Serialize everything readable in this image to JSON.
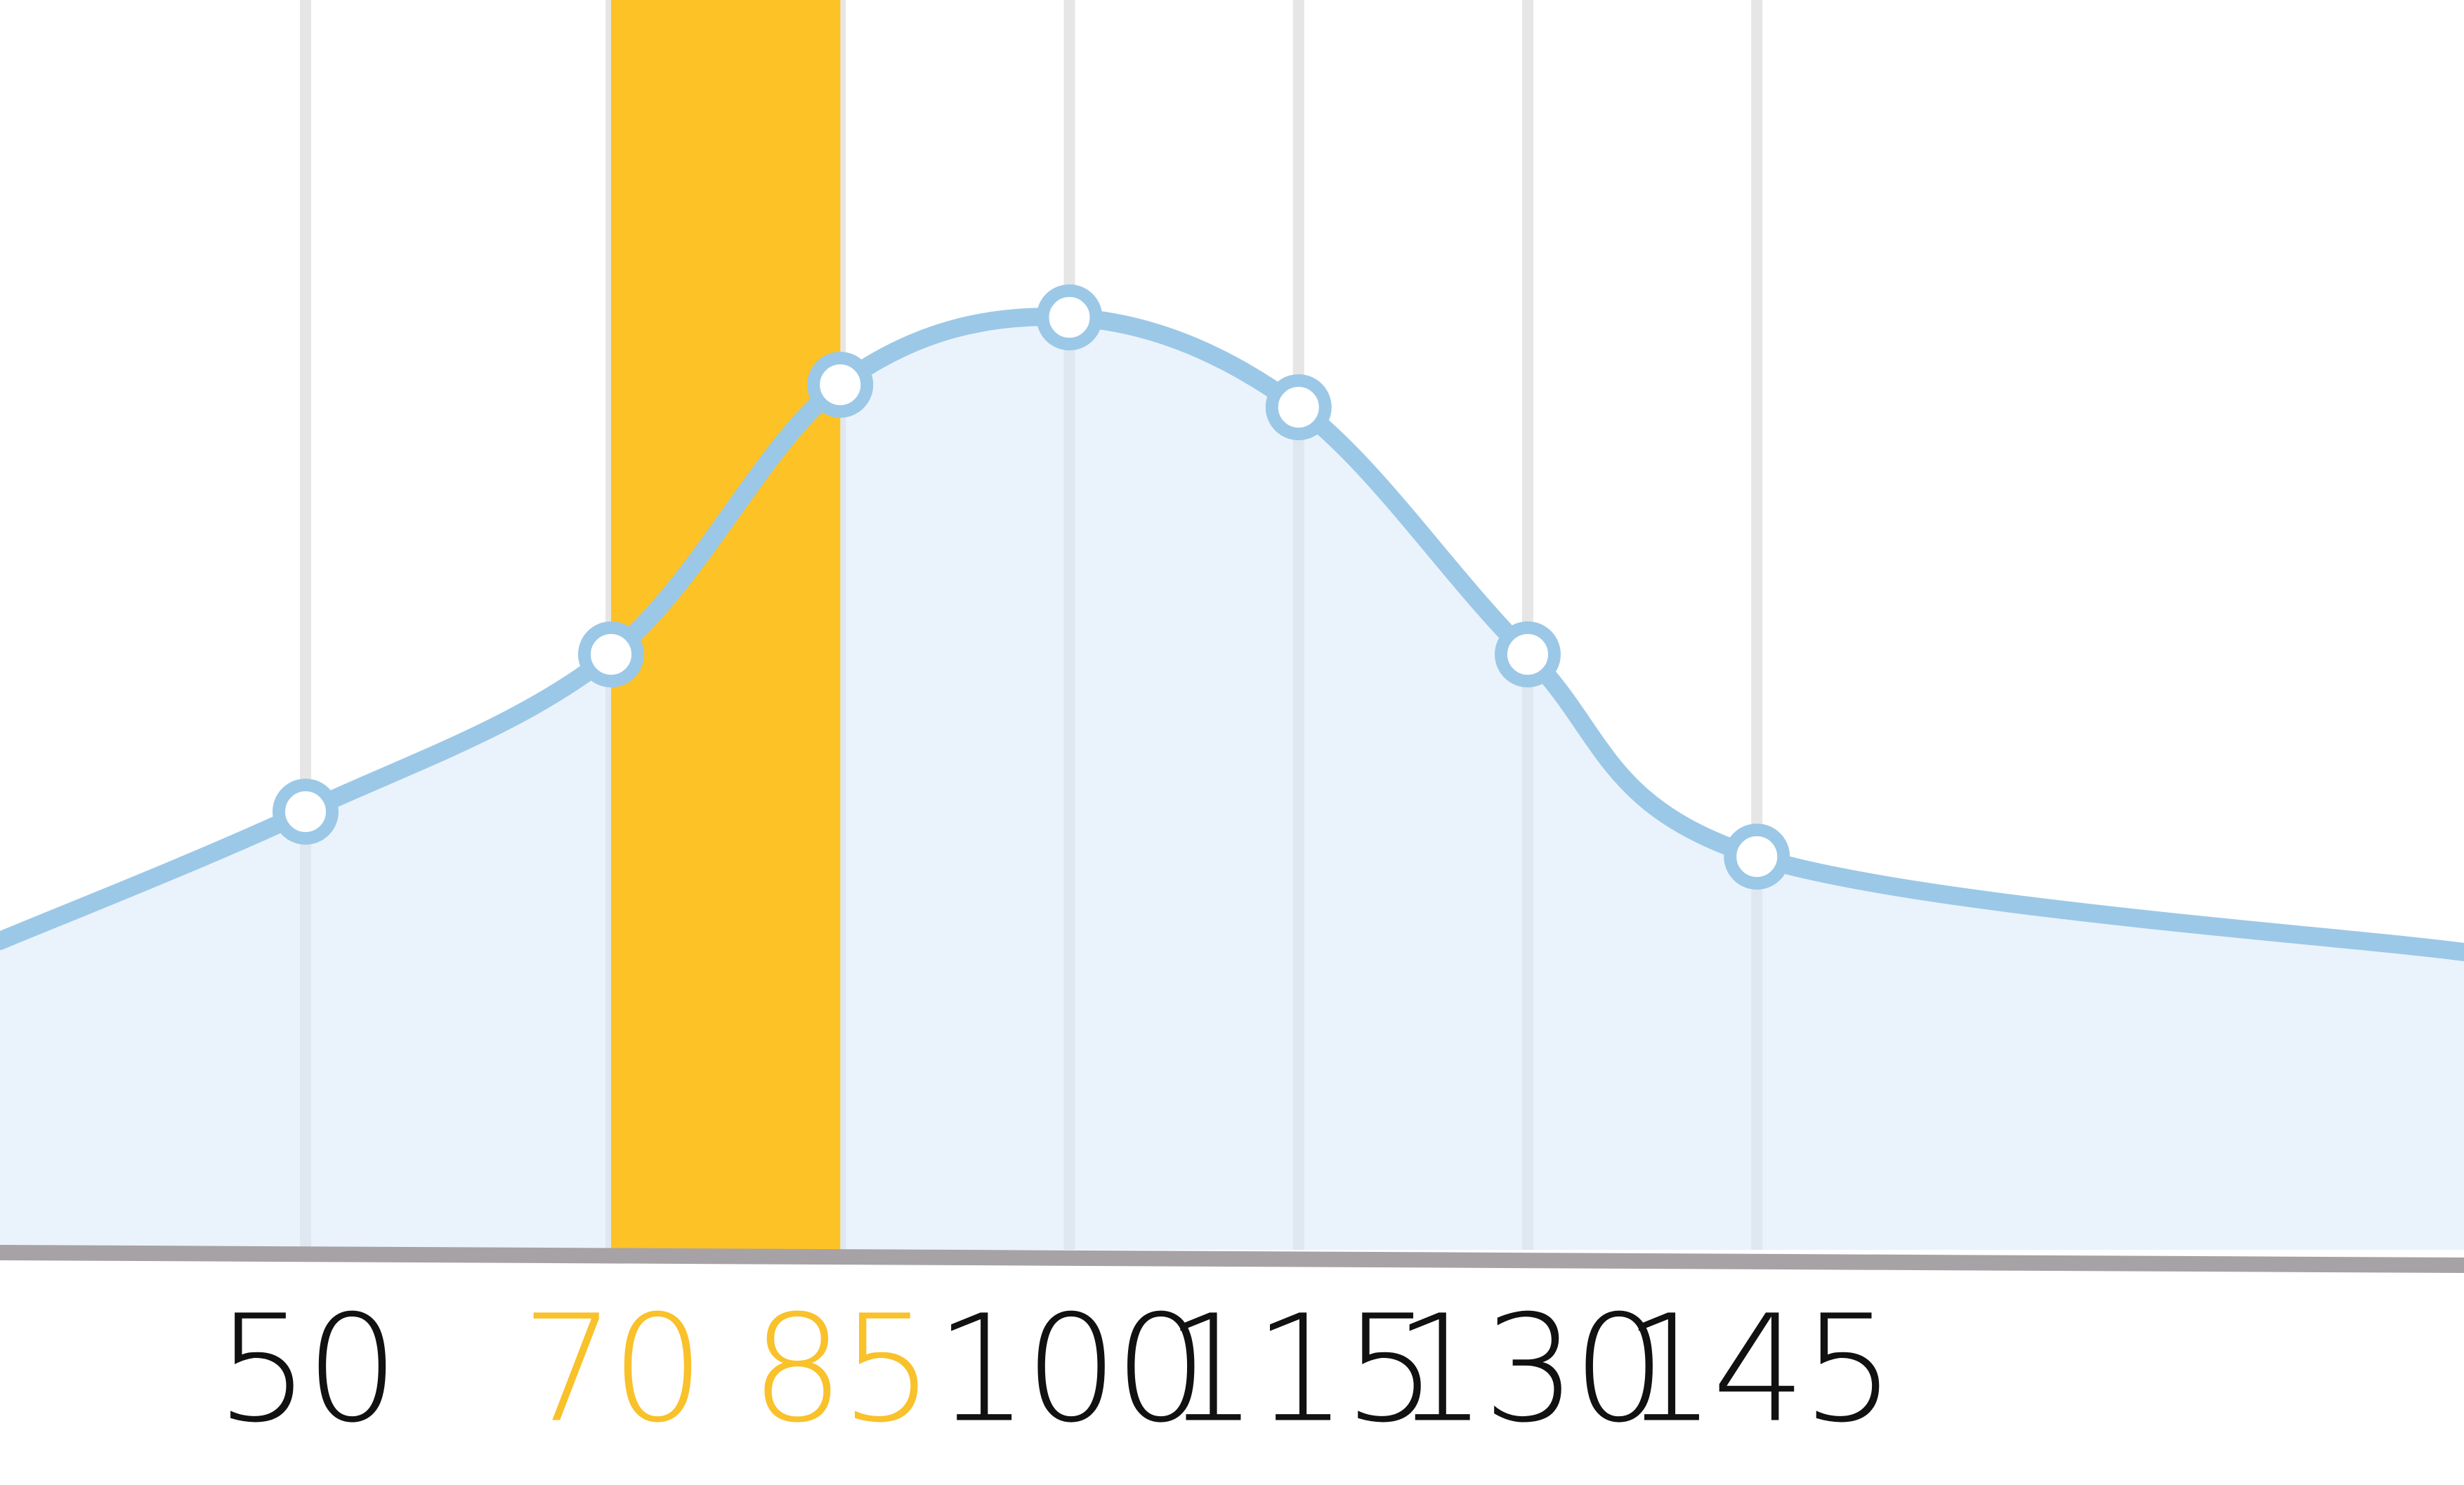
{
  "chart_data": {
    "type": "area",
    "x": [
      50,
      70,
      85,
      100,
      115,
      130,
      145
    ],
    "tick_labels": [
      "50",
      "70",
      "85",
      "100",
      "115",
      "130",
      "145"
    ],
    "values": [
      0.39,
      0.53,
      0.77,
      0.83,
      0.75,
      0.53,
      0.35
    ],
    "line_start_value": 0.275,
    "line_end_value": 0.265,
    "highlight_range": [
      70,
      85
    ],
    "highlighted_tick_labels": [
      "70",
      "85"
    ],
    "colors": {
      "highlight": "#FCC226",
      "area_fill": "#D8E9F9",
      "line": "#9CC8E7",
      "grid": "#E6E6E6",
      "baseline": "#A7A2A6",
      "tick_text": "#111111",
      "tick_text_highlight": "#F9C12A"
    },
    "grid": true,
    "title": "",
    "xlabel": "",
    "ylabel": ""
  }
}
